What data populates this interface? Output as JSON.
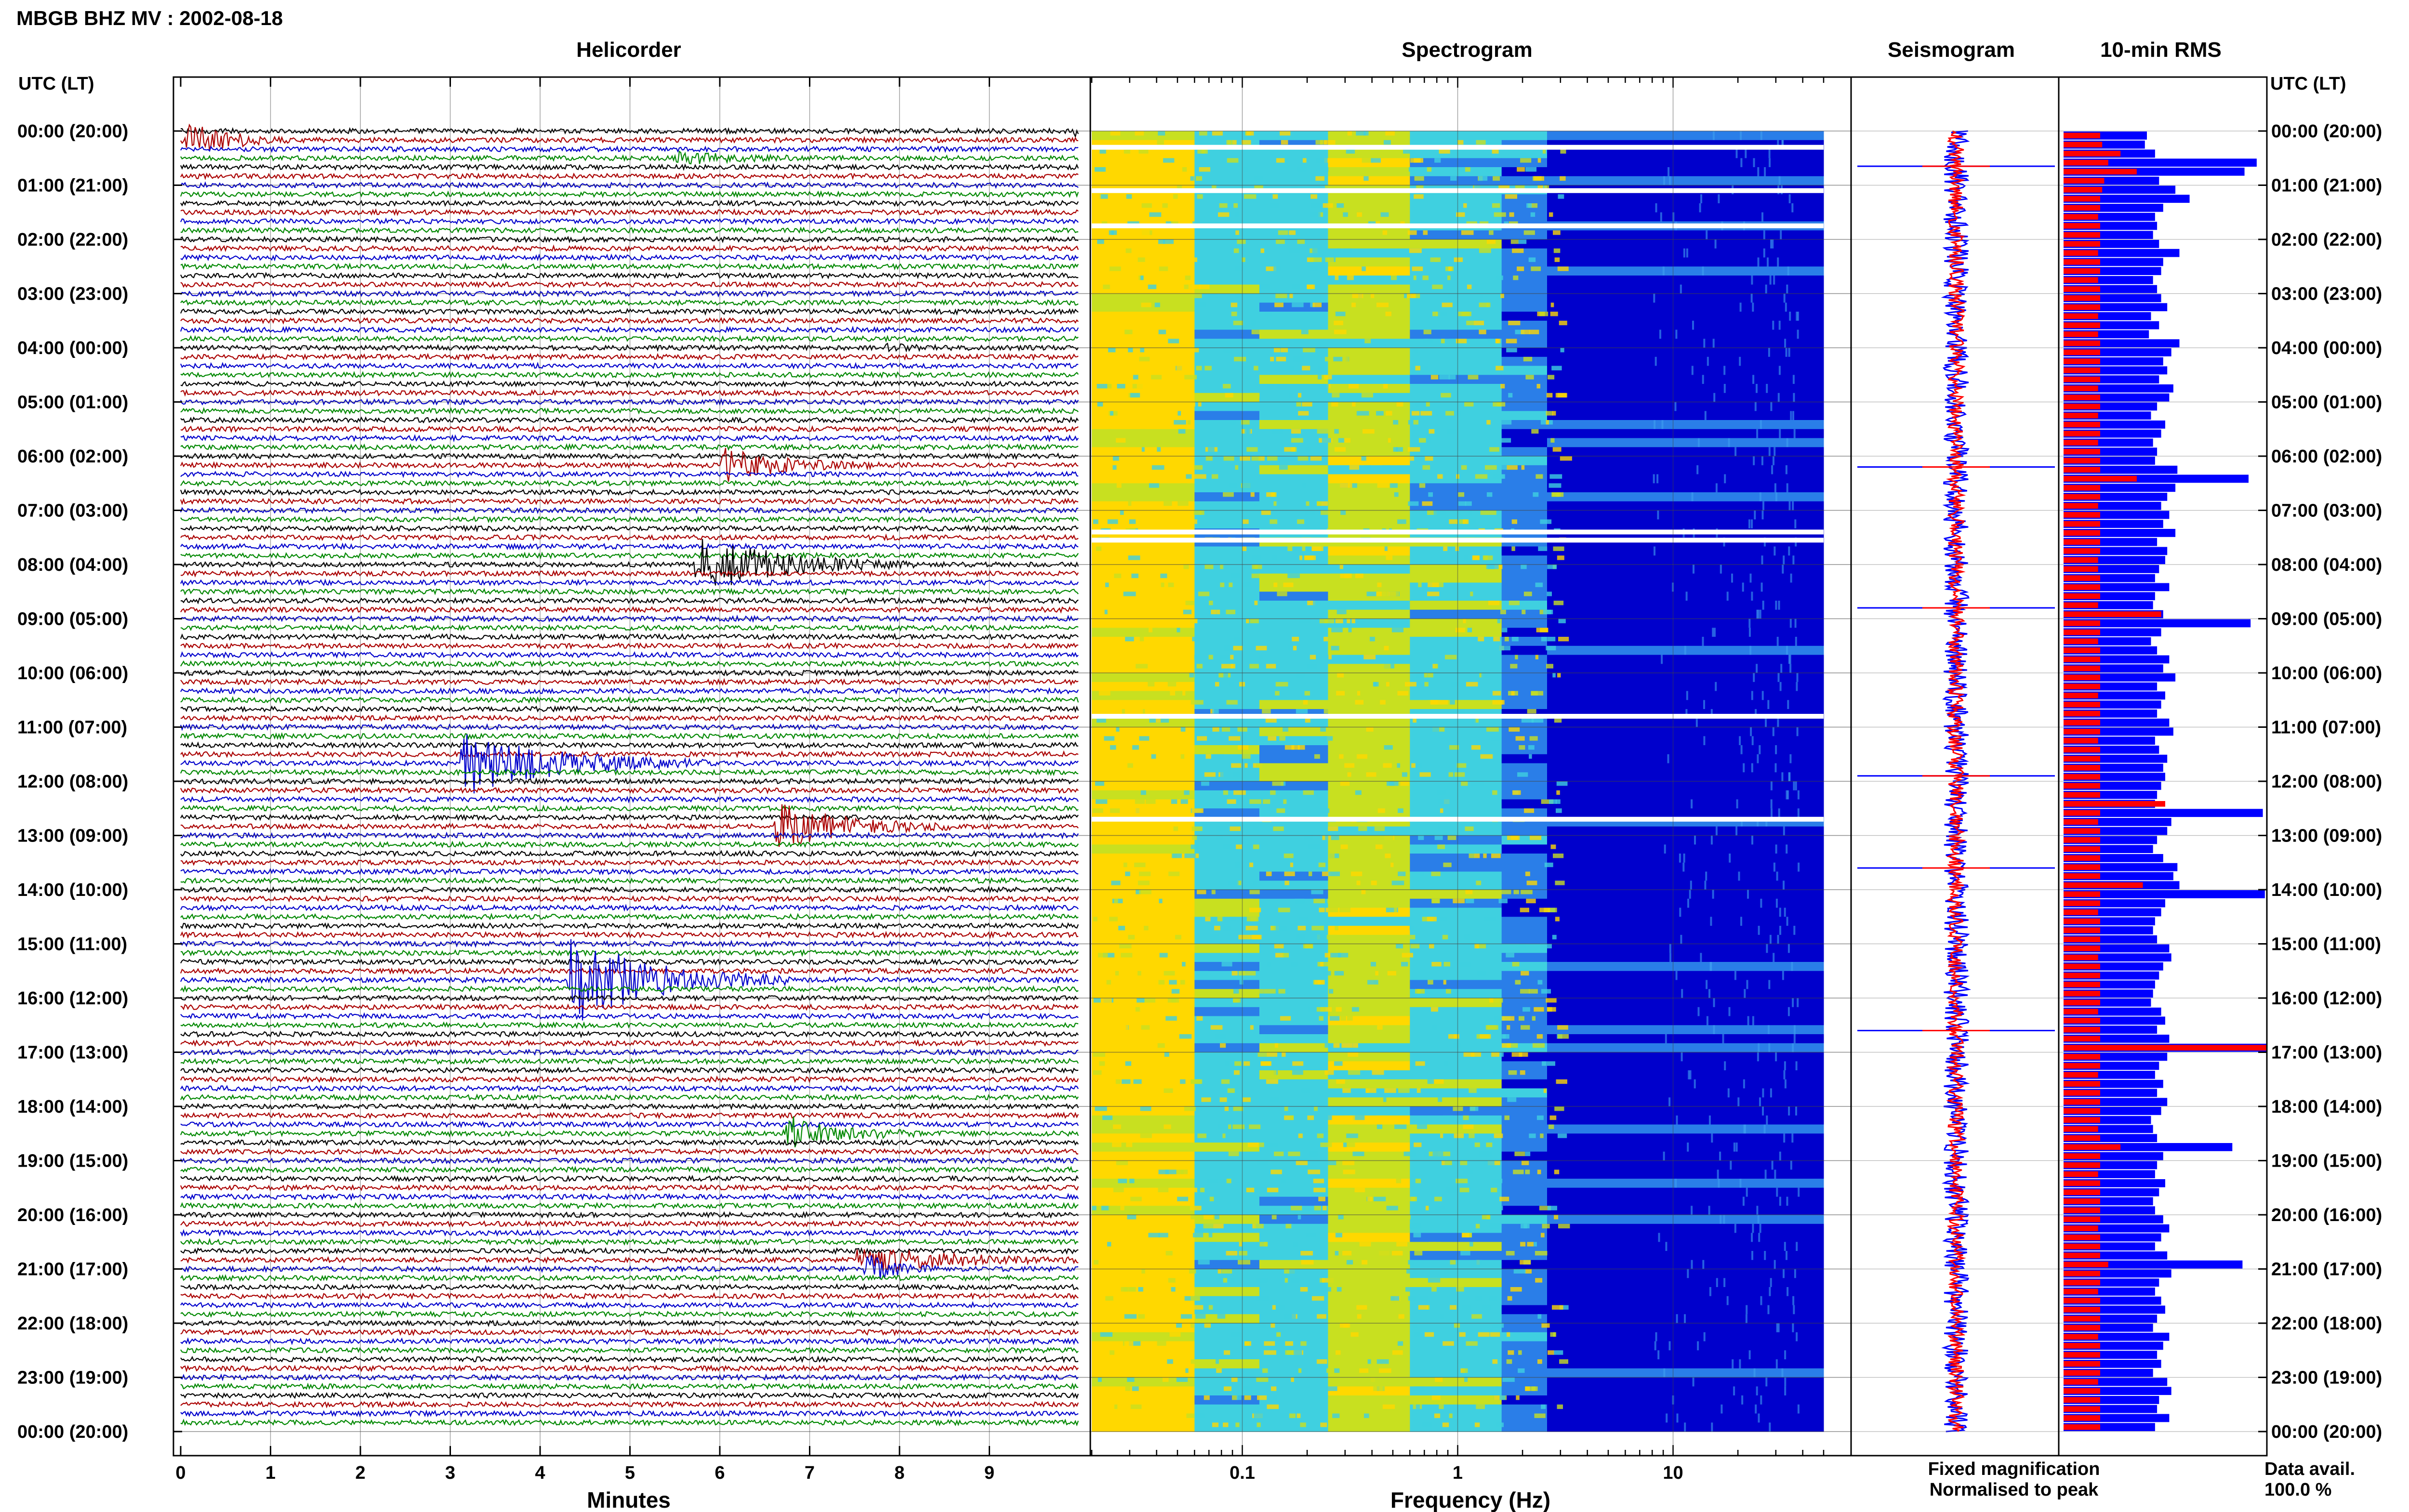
{
  "header": {
    "title": "MBGB BHZ MV : 2002-08-18"
  },
  "panels": {
    "helicorder": "Helicorder",
    "spectrogram": "Spectrogram",
    "seismogram": "Seismogram",
    "rms": "10-min RMS"
  },
  "axes": {
    "time_header_left": "UTC (LT)",
    "time_header_right": "UTC (LT)",
    "time_labels": [
      "00:00 (20:00)",
      "01:00 (21:00)",
      "02:00 (22:00)",
      "03:00 (23:00)",
      "04:00 (00:00)",
      "05:00 (01:00)",
      "06:00 (02:00)",
      "07:00 (03:00)",
      "08:00 (04:00)",
      "09:00 (05:00)",
      "10:00 (06:00)",
      "11:00 (07:00)",
      "12:00 (08:00)",
      "13:00 (09:00)",
      "14:00 (10:00)",
      "15:00 (11:00)",
      "16:00 (12:00)",
      "17:00 (13:00)",
      "18:00 (14:00)",
      "19:00 (15:00)",
      "20:00 (16:00)",
      "21:00 (17:00)",
      "22:00 (18:00)",
      "23:00 (19:00)",
      "00:00 (20:00)"
    ],
    "minutes_label": "Minutes",
    "minutes_ticks": [
      "0",
      "1",
      "2",
      "3",
      "4",
      "5",
      "6",
      "7",
      "8",
      "9"
    ],
    "frequency_label": "Frequency (Hz)",
    "frequency_ticks": [
      "0.1",
      "1",
      "10"
    ]
  },
  "legend": {
    "fixed": "Fixed magnification",
    "normalised": "Normalised to peak",
    "fixed_color": "#0000ff",
    "normalised_color": "#ff0000"
  },
  "availability": {
    "label": "Data avail.",
    "value": "100.0 %"
  },
  "chart_data": [
    {
      "type": "line",
      "panel": "helicorder",
      "xlabel": "Minutes",
      "xlim": [
        0,
        10
      ],
      "rows_per_hour": 6,
      "trace_colors": [
        "#000000",
        "#aa0000",
        "#0000cc",
        "#008800"
      ],
      "events": [
        {
          "row": 1,
          "minute": 0.0,
          "duration": 1.2,
          "amp": 2.2,
          "color": "#000000"
        },
        {
          "row": 0,
          "minute": 9.9,
          "duration": 0.1,
          "amp": 2.0,
          "color": "#008800"
        },
        {
          "row": 3,
          "minute": 5.5,
          "duration": 1.5,
          "amp": 0.6,
          "color": "#000000"
        },
        {
          "row": 24,
          "minute": 7.8,
          "duration": 0.6,
          "amp": 0.4,
          "color": "#000000"
        },
        {
          "row": 37,
          "minute": 6.0,
          "duration": 1.8,
          "amp": 1.6,
          "color": "#0000cc"
        },
        {
          "row": 48,
          "minute": 5.7,
          "duration": 2.5,
          "amp": 3.0,
          "color": "#000000"
        },
        {
          "row": 70,
          "minute": 3.1,
          "duration": 2.8,
          "amp": 3.2,
          "color": "#008800"
        },
        {
          "row": 77,
          "minute": 6.6,
          "duration": 2.0,
          "amp": 2.4,
          "color": "#aa0000"
        },
        {
          "row": 94,
          "minute": 4.3,
          "duration": 2.5,
          "amp": 4.5,
          "color": "#008800"
        },
        {
          "row": 111,
          "minute": 6.7,
          "duration": 1.5,
          "amp": 1.8,
          "color": "#008800"
        },
        {
          "row": 125,
          "minute": 7.5,
          "duration": 2.5,
          "amp": 1.5,
          "color": "#aa0000"
        },
        {
          "row": 126,
          "minute": 7.6,
          "duration": 0.8,
          "amp": 1.6,
          "color": "#000000"
        }
      ]
    },
    {
      "type": "heatmap",
      "panel": "spectrogram",
      "xlabel": "Frequency (Hz)",
      "x_scale": "log",
      "xlim": [
        0.02,
        50
      ],
      "gaps_utc_hours": [
        0.3,
        1.1,
        1.75,
        7.4,
        7.55,
        10.8,
        12.7
      ],
      "colormap": [
        "#ffd800",
        "#c8e020",
        "#3fd0e0",
        "#2a7ee8",
        "#0000cc"
      ]
    },
    {
      "type": "bar",
      "panel": "seismogram",
      "series": [
        {
          "name": "Fixed magnification",
          "color": "#0000ff"
        },
        {
          "name": "Normalised to peak",
          "color": "#ff0000"
        }
      ],
      "spikes_utc_hours": [
        0.65,
        6.2,
        8.8,
        11.9,
        13.6,
        16.6
      ]
    },
    {
      "type": "bar",
      "panel": "rms",
      "orientation": "horizontal",
      "rows": 144,
      "series": [
        {
          "name": "Fixed magnification",
          "color": "#0000ff",
          "values": [
            0.41,
            0.4,
            0.45,
            0.95,
            0.89,
            0.47,
            0.55,
            0.62,
            0.49,
            0.45,
            0.46,
            0.44,
            0.47,
            0.57,
            0.49,
            0.48,
            0.44,
            0.46,
            0.48,
            0.51,
            0.43,
            0.47,
            0.42,
            0.57,
            0.53,
            0.49,
            0.51,
            0.47,
            0.54,
            0.52,
            0.46,
            0.43,
            0.5,
            0.48,
            0.44,
            0.46,
            0.45,
            0.56,
            0.91,
            0.55,
            0.51,
            0.48,
            0.52,
            0.49,
            0.55,
            0.46,
            0.51,
            0.5,
            0.47,
            0.45,
            0.52,
            0.45,
            0.44,
            0.49,
            0.92,
            0.48,
            0.43,
            0.46,
            0.52,
            0.49,
            0.55,
            0.46,
            0.5,
            0.48,
            0.46,
            0.52,
            0.54,
            0.45,
            0.47,
            0.51,
            0.49,
            0.5,
            0.48,
            0.46,
            0.45,
            0.98,
            0.53,
            0.51,
            0.46,
            0.44,
            0.49,
            0.56,
            0.54,
            0.57,
            0.99,
            0.5,
            0.48,
            0.45,
            0.44,
            0.46,
            0.52,
            0.53,
            0.49,
            0.47,
            0.45,
            0.44,
            0.43,
            0.48,
            0.5,
            0.46,
            0.52,
            1.0,
            0.51,
            0.47,
            0.45,
            0.49,
            0.46,
            0.51,
            0.48,
            0.43,
            0.44,
            0.46,
            0.83,
            0.49,
            0.46,
            0.45,
            0.5,
            0.47,
            0.44,
            0.45,
            0.49,
            0.52,
            0.48,
            0.45,
            0.51,
            0.88,
            0.53,
            0.47,
            0.45,
            0.48,
            0.5,
            0.46,
            0.44,
            0.52,
            0.49,
            0.46,
            0.48,
            0.44,
            0.51,
            0.53,
            0.47,
            0.46,
            0.52,
            0.45
          ]
        },
        {
          "name": "Normalised to peak",
          "color": "#ff0000",
          "values": [
            0.18,
            0.19,
            0.28,
            0.22,
            0.36,
            0.2,
            0.19,
            0.18,
            0.18,
            0.17,
            0.18,
            0.18,
            0.18,
            0.17,
            0.18,
            0.18,
            0.17,
            0.18,
            0.18,
            0.18,
            0.17,
            0.18,
            0.17,
            0.18,
            0.18,
            0.18,
            0.18,
            0.18,
            0.17,
            0.18,
            0.18,
            0.17,
            0.18,
            0.18,
            0.17,
            0.18,
            0.18,
            0.18,
            0.36,
            0.18,
            0.18,
            0.17,
            0.18,
            0.18,
            0.18,
            0.18,
            0.18,
            0.17,
            0.17,
            0.18,
            0.18,
            0.18,
            0.17,
            0.48,
            0.18,
            0.18,
            0.17,
            0.18,
            0.18,
            0.18,
            0.18,
            0.18,
            0.17,
            0.18,
            0.18,
            0.18,
            0.18,
            0.17,
            0.18,
            0.18,
            0.18,
            0.18,
            0.18,
            0.18,
            0.5,
            0.18,
            0.17,
            0.18,
            0.18,
            0.18,
            0.18,
            0.18,
            0.18,
            0.39,
            0.18,
            0.18,
            0.17,
            0.18,
            0.18,
            0.18,
            0.18,
            0.17,
            0.18,
            0.18,
            0.18,
            0.18,
            0.18,
            0.17,
            0.18,
            0.18,
            0.18,
            1.0,
            0.18,
            0.18,
            0.17,
            0.18,
            0.18,
            0.18,
            0.18,
            0.18,
            0.17,
            0.18,
            0.28,
            0.18,
            0.18,
            0.17,
            0.18,
            0.18,
            0.18,
            0.18,
            0.18,
            0.17,
            0.18,
            0.18,
            0.18,
            0.22,
            0.18,
            0.18,
            0.17,
            0.18,
            0.18,
            0.18,
            0.18,
            0.17,
            0.18,
            0.18,
            0.18,
            0.18,
            0.17,
            0.18,
            0.18,
            0.18,
            0.18,
            0.18
          ]
        }
      ]
    }
  ]
}
